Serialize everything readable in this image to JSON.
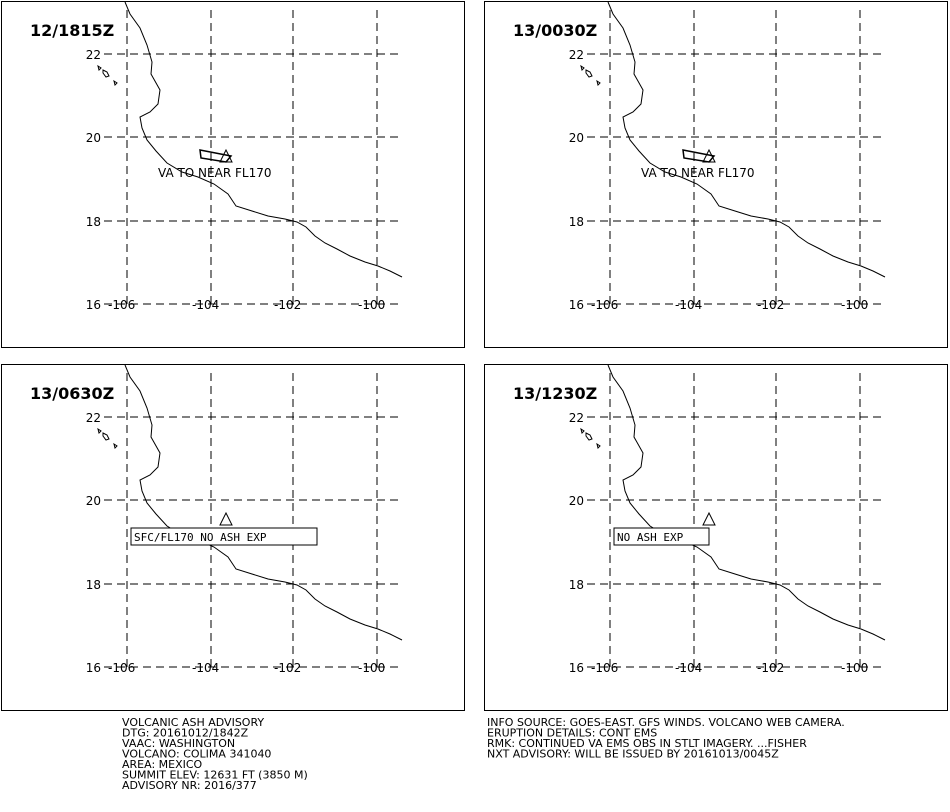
{
  "panels": [
    {
      "time": "12/1815Z",
      "annotation": "VA TO NEAR FL170"
    },
    {
      "time": "13/0030Z",
      "annotation": "VA TO NEAR FL170"
    },
    {
      "time": "13/0630Z",
      "annotation": "SFC/FL170 NO ASH EXP"
    },
    {
      "time": "13/1230Z",
      "annotation": "NO ASH EXP"
    }
  ],
  "lat_labels": [
    "22",
    "20",
    "18",
    "16"
  ],
  "lon_labels": [
    "-106",
    "-104",
    "-102",
    "-100"
  ],
  "footer_left": [
    "VOLCANIC ASH ADVISORY",
    "DTG: 20161012/1842Z",
    "VAAC: WASHINGTON",
    "VOLCANO: COLIMA 341040",
    "AREA: MEXICO",
    "SUMMIT ELEV: 12631 FT (3850 M)",
    "ADVISORY NR: 2016/377"
  ],
  "footer_right": [
    "INFO SOURCE: GOES-EAST. GFS WINDS. VOLCANO WEB CAMERA.",
    "ERUPTION DETAILS: CONT EMS",
    "RMK: CONTINUED VA EMS OBS IN STLT IMAGERY. ...FISHER",
    "NXT ADVISORY: WILL BE ISSUED BY 20161013/0045Z"
  ]
}
